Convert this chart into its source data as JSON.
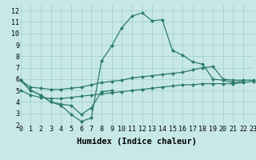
{
  "xlabel": "Humidex (Indice chaleur)",
  "x_values": [
    0,
    1,
    2,
    3,
    4,
    5,
    6,
    7,
    8,
    9,
    10,
    11,
    12,
    13,
    14,
    15,
    16,
    17,
    18,
    19,
    20,
    21,
    22,
    23
  ],
  "line_main": [
    5.9,
    5.0,
    4.6,
    4.0,
    3.7,
    2.9,
    2.3,
    2.6,
    7.6,
    8.9,
    10.5,
    11.5,
    11.8,
    11.1,
    11.2,
    8.5,
    8.1,
    7.5,
    7.3,
    6.0,
    5.9,
    5.7,
    5.8,
    null
  ],
  "line_low": [
    5.9,
    5.0,
    4.6,
    4.0,
    3.8,
    3.7,
    2.9,
    3.5,
    4.9,
    5.0,
    null,
    null,
    null,
    null,
    null,
    null,
    null,
    null,
    null,
    null,
    null,
    null,
    null,
    null
  ],
  "line_upper": [
    5.9,
    5.3,
    5.2,
    5.1,
    5.1,
    5.2,
    5.3,
    5.5,
    5.7,
    5.8,
    5.9,
    6.1,
    6.2,
    6.3,
    6.4,
    6.5,
    6.6,
    6.8,
    7.0,
    7.1,
    6.0,
    5.9,
    5.9,
    5.9
  ],
  "line_lower": [
    5.0,
    4.6,
    4.4,
    4.3,
    4.3,
    4.4,
    4.5,
    4.6,
    4.7,
    4.8,
    4.9,
    5.0,
    5.1,
    5.2,
    5.3,
    5.4,
    5.5,
    5.5,
    5.6,
    5.6,
    5.6,
    5.6,
    5.7,
    5.8
  ],
  "xlim": [
    0,
    23
  ],
  "ylim": [
    2,
    12.5
  ],
  "yticks": [
    2,
    3,
    4,
    5,
    6,
    7,
    8,
    9,
    10,
    11,
    12
  ],
  "xticks": [
    0,
    1,
    2,
    3,
    4,
    5,
    6,
    7,
    8,
    9,
    10,
    11,
    12,
    13,
    14,
    15,
    16,
    17,
    18,
    19,
    20,
    21,
    22,
    23
  ],
  "line_color": "#2D7B6F",
  "bg_color": "#C8E8E8",
  "grid_color": "#9DCCCC",
  "xlabel_fontsize": 7.5,
  "tick_fontsize": 6.0
}
